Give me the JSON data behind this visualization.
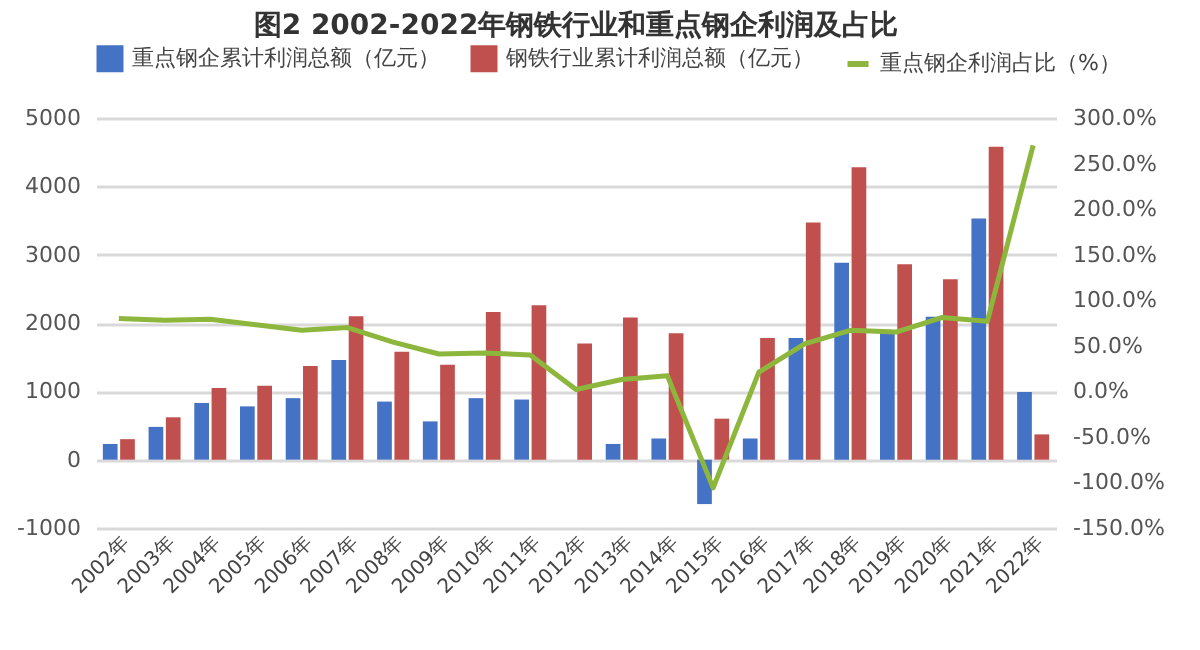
{
  "chart_data": {
    "type": "bar",
    "title": "图2 2002-2022年钢铁行业和重点钢企利润及占比",
    "categories": [
      "2002年",
      "2003年",
      "2004年",
      "2005年",
      "2006年",
      "2007年",
      "2008年",
      "2009年",
      "2010年",
      "2011年",
      "2012年",
      "2013年",
      "2014年",
      "2015年",
      "2016年",
      "2017年",
      "2018年",
      "2019年",
      "2020年",
      "2021年",
      "2022年"
    ],
    "series": [
      {
        "name": "重点钢企累计利润总额（亿元）",
        "color": "#4472c4",
        "values": [
          230,
          480,
          830,
          780,
          900,
          1460,
          850,
          560,
          900,
          880,
          null,
          230,
          310,
          -650,
          310,
          1780,
          2880,
          1880,
          2090,
          3530,
          990
        ]
      },
      {
        "name": "钢铁行业累计利润总额（亿元）",
        "color": "#c0504d",
        "values": [
          300,
          620,
          1050,
          1080,
          1370,
          2100,
          1580,
          1390,
          2160,
          2260,
          1700,
          2080,
          1850,
          600,
          1780,
          3470,
          4280,
          2860,
          2640,
          4580,
          370
        ]
      },
      {
        "name": "重点钢企利润占比（%）",
        "color": "#8db63c",
        "type": "line",
        "axis": "y2",
        "values": [
          80,
          78,
          79,
          73,
          67,
          70,
          54,
          41,
          42,
          40,
          2,
          13,
          17,
          -106,
          21,
          52,
          67,
          65,
          81,
          77,
          270
        ]
      }
    ],
    "ylim": [
      -1000,
      5000
    ],
    "yticks": [
      -1000,
      0,
      1000,
      2000,
      3000,
      4000,
      5000
    ],
    "y2lim": [
      -150,
      300
    ],
    "y2ticks": [
      {
        "value": -150,
        "label": "-150.0%"
      },
      {
        "value": -100,
        "label": "-100.0%"
      },
      {
        "value": -50,
        "label": "-50.0%"
      },
      {
        "value": 0,
        "label": "0.0%"
      },
      {
        "value": 50,
        "label": "50.0%"
      },
      {
        "value": 100,
        "label": "100.0%"
      },
      {
        "value": 150,
        "label": "150.0%"
      },
      {
        "value": 200,
        "label": "200.0%"
      },
      {
        "value": 250,
        "label": "250.0%"
      },
      {
        "value": 300,
        "label": "300.0%"
      }
    ],
    "grid": "y",
    "legend": "top"
  }
}
